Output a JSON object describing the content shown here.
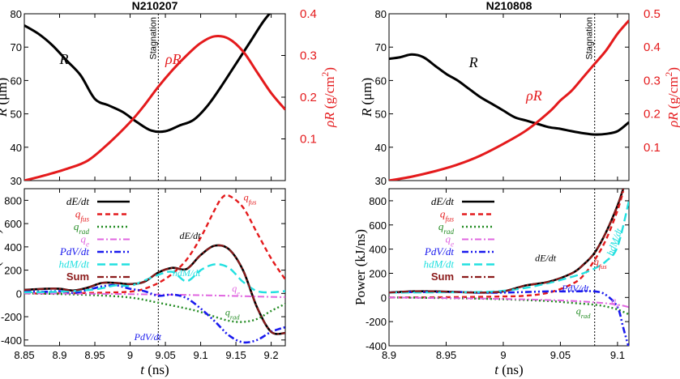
{
  "colors": {
    "R": "#000000",
    "rhoR": "#e41a1c",
    "dEdt": "#000000",
    "qfus": "#e41a1c",
    "qrad": "#228b22",
    "qe": "#e066e0",
    "PdVdt": "#1a1aee",
    "hdMdt": "#22e0e0",
    "Sum": "#8b1a1a"
  },
  "chart_data": [
    {
      "type": "line",
      "panel": "top-left",
      "title": "N210207",
      "ylabel": "R (μm)",
      "ylabel2": "ρR (g/cm²)",
      "xlim": [
        8.85,
        9.22
      ],
      "ylim": [
        30,
        80
      ],
      "y2lim": [
        0,
        0.4
      ],
      "yticks": [
        "30",
        "40",
        "50",
        "60",
        "70",
        "80"
      ],
      "y2ticks": [
        "0.1",
        "0.2",
        "0.3",
        "0.4"
      ],
      "stagnation": {
        "x": 9.04,
        "label": "Stagnation"
      },
      "series": [
        {
          "name": "R",
          "label": "R",
          "axis": "left",
          "x": [
            8.85,
            8.87,
            8.89,
            8.91,
            8.93,
            8.95,
            8.97,
            8.99,
            9.01,
            9.03,
            9.05,
            9.07,
            9.09,
            9.11,
            9.13,
            9.15,
            9.17,
            9.19,
            9.21
          ],
          "y": [
            76.5,
            74.0,
            70.5,
            66.0,
            61.5,
            54.5,
            52.5,
            50.5,
            47.5,
            45.0,
            44.8,
            46.5,
            48.2,
            52.5,
            58.5,
            65.0,
            71.5,
            78.0,
            83.0
          ]
        },
        {
          "name": "rhoR",
          "label": "ρR",
          "axis": "right",
          "x": [
            8.85,
            8.88,
            8.91,
            8.94,
            8.97,
            9.0,
            9.02,
            9.04,
            9.06,
            9.08,
            9.1,
            9.12,
            9.14,
            9.16,
            9.18,
            9.2,
            9.22
          ],
          "y": [
            0.0,
            0.013,
            0.028,
            0.048,
            0.09,
            0.14,
            0.18,
            0.225,
            0.265,
            0.3,
            0.33,
            0.346,
            0.34,
            0.31,
            0.26,
            0.21,
            0.17
          ]
        }
      ]
    },
    {
      "type": "line",
      "panel": "bottom-left",
      "xlabel": "t (ns)",
      "ylabel": "Power (kJ/ns)",
      "xlim": [
        8.85,
        9.22
      ],
      "ylim": [
        -450,
        900
      ],
      "xticks": [
        "8.85",
        "8.9",
        "8.95",
        "9",
        "9.05",
        "9.1",
        "9.15",
        "9.2"
      ],
      "yticks": [
        "-400",
        "-200",
        "0",
        "200",
        "400",
        "600",
        "800"
      ],
      "stagnation": {
        "x": 9.04
      },
      "legend_position": "top-left",
      "series": [
        {
          "name": "dEdt",
          "label": "dE/dt",
          "x": [
            8.85,
            8.88,
            8.9,
            8.92,
            8.94,
            8.96,
            8.98,
            9.0,
            9.02,
            9.04,
            9.06,
            9.08,
            9.1,
            9.12,
            9.14,
            9.16,
            9.18,
            9.2,
            9.22
          ],
          "y": [
            30,
            40,
            40,
            25,
            50,
            90,
            90,
            80,
            100,
            180,
            220,
            210,
            330,
            410,
            380,
            200,
            -120,
            -330,
            -340
          ]
        },
        {
          "name": "qfus",
          "label": "qfus",
          "x": [
            8.85,
            8.9,
            8.95,
            9.0,
            9.02,
            9.04,
            9.06,
            9.08,
            9.1,
            9.12,
            9.13,
            9.14,
            9.16,
            9.18,
            9.2,
            9.22
          ],
          "y": [
            0,
            0,
            5,
            15,
            40,
            90,
            170,
            290,
            480,
            720,
            820,
            840,
            740,
            520,
            300,
            120
          ]
        },
        {
          "name": "qrad",
          "label": "qrad",
          "x": [
            8.85,
            8.9,
            8.95,
            9.0,
            9.04,
            9.08,
            9.1,
            9.12,
            9.14,
            9.16,
            9.18,
            9.2,
            9.22
          ],
          "y": [
            0,
            -5,
            -15,
            -35,
            -80,
            -130,
            -160,
            -200,
            -235,
            -245,
            -220,
            -150,
            -90
          ]
        },
        {
          "name": "qe",
          "label": "qe",
          "x": [
            8.85,
            8.95,
            9.0,
            9.05,
            9.1,
            9.15,
            9.2,
            9.22
          ],
          "y": [
            0,
            -3,
            -6,
            -10,
            -15,
            -22,
            -30,
            -32
          ]
        },
        {
          "name": "PdVdt",
          "label": "PdV/dt",
          "x": [
            8.85,
            8.88,
            8.9,
            8.92,
            8.94,
            8.96,
            8.98,
            9.0,
            9.02,
            9.04,
            9.06,
            9.08,
            9.1,
            9.12,
            9.14,
            9.16,
            9.18,
            9.2,
            9.22
          ],
          "y": [
            20,
            15,
            20,
            5,
            30,
            60,
            70,
            40,
            20,
            -20,
            -10,
            -40,
            -130,
            -240,
            -360,
            -420,
            -400,
            -330,
            -290
          ]
        },
        {
          "name": "hdMdt",
          "label": "hdM/dt",
          "x": [
            8.85,
            8.9,
            8.95,
            8.98,
            9.0,
            9.02,
            9.04,
            9.06,
            9.08,
            9.1,
            9.12,
            9.14,
            9.16,
            9.18,
            9.2,
            9.22
          ],
          "y": [
            10,
            15,
            35,
            70,
            65,
            110,
            160,
            185,
            105,
            200,
            250,
            220,
            100,
            20,
            10,
            20
          ]
        },
        {
          "name": "Sum",
          "label": "Sum",
          "x": [
            8.85,
            8.88,
            8.9,
            8.92,
            8.94,
            8.96,
            8.98,
            9.0,
            9.02,
            9.04,
            9.06,
            9.08,
            9.1,
            9.12,
            9.14,
            9.16,
            9.18,
            9.2,
            9.22
          ],
          "y": [
            30,
            40,
            40,
            25,
            50,
            90,
            90,
            80,
            100,
            180,
            220,
            210,
            330,
            410,
            380,
            200,
            -120,
            -330,
            -340
          ]
        }
      ],
      "annotations": [
        {
          "text": "qfus",
          "x": 9.17,
          "y": 800
        },
        {
          "text": "dE/dt",
          "x": 9.085,
          "y": 470
        },
        {
          "text": "hdM/dt",
          "x": 9.08,
          "y": 150
        },
        {
          "text": "qe",
          "x": 9.15,
          "y": 15
        },
        {
          "text": "qrad",
          "x": 9.145,
          "y": -190
        },
        {
          "text": "PdV/dt",
          "x": 9.025,
          "y": -400
        }
      ]
    },
    {
      "type": "line",
      "panel": "top-right",
      "title": "N210808",
      "ylabel": "R (μm)",
      "ylabel2": "ρR (g/cm²)",
      "xlim": [
        8.9,
        9.11
      ],
      "ylim": [
        30,
        80
      ],
      "y2lim": [
        0,
        0.5
      ],
      "yticks": [
        "30",
        "40",
        "50",
        "60",
        "70",
        "80"
      ],
      "y2ticks": [
        "0.1",
        "0.2",
        "0.3",
        "0.4",
        "0.5"
      ],
      "stagnation": {
        "x": 9.08,
        "label": "Stagnation"
      },
      "series": [
        {
          "name": "R",
          "label": "R",
          "axis": "left",
          "x": [
            8.9,
            8.91,
            8.92,
            8.93,
            8.94,
            8.95,
            8.96,
            8.97,
            8.98,
            8.99,
            9.0,
            9.01,
            9.02,
            9.03,
            9.04,
            9.05,
            9.06,
            9.07,
            9.08,
            9.09,
            9.1,
            9.11
          ],
          "y": [
            66.5,
            67.0,
            67.8,
            67.0,
            64.5,
            62.0,
            60.0,
            57.5,
            55.0,
            53.0,
            51.0,
            49.0,
            48.0,
            47.0,
            46.0,
            45.5,
            44.8,
            44.2,
            43.8,
            44.0,
            44.8,
            47.5
          ]
        },
        {
          "name": "rhoR",
          "label": "ρR",
          "axis": "right",
          "x": [
            8.9,
            8.92,
            8.94,
            8.96,
            8.98,
            9.0,
            9.02,
            9.04,
            9.05,
            9.06,
            9.07,
            9.08,
            9.09,
            9.1,
            9.11
          ],
          "y": [
            0.0,
            0.012,
            0.028,
            0.048,
            0.075,
            0.11,
            0.15,
            0.205,
            0.24,
            0.27,
            0.31,
            0.35,
            0.39,
            0.44,
            0.48
          ]
        }
      ]
    },
    {
      "type": "line",
      "panel": "bottom-right",
      "xlabel": "t (ns)",
      "ylabel": "Power (kJ/ns)",
      "xlim": [
        8.9,
        9.11
      ],
      "ylim": [
        -400,
        900
      ],
      "xticks": [
        "8.9",
        "8.95",
        "9",
        "9.05",
        "9.1"
      ],
      "yticks": [
        "-400",
        "-200",
        "0",
        "200",
        "400",
        "600",
        "800"
      ],
      "stagnation": {
        "x": 9.08
      },
      "legend_position": "top-left",
      "series": [
        {
          "name": "dEdt",
          "label": "dE/dt",
          "x": [
            8.9,
            8.92,
            8.94,
            8.96,
            8.98,
            9.0,
            9.02,
            9.04,
            9.06,
            9.07,
            9.08,
            9.09,
            9.1,
            9.105
          ],
          "y": [
            40,
            50,
            50,
            45,
            40,
            50,
            100,
            130,
            200,
            270,
            370,
            540,
            760,
            900
          ]
        },
        {
          "name": "qfus",
          "label": "qfus",
          "x": [
            8.9,
            8.95,
            9.0,
            9.02,
            9.04,
            9.06,
            9.07,
            9.08,
            9.09,
            9.1,
            9.105
          ],
          "y": [
            0,
            2,
            8,
            15,
            40,
            110,
            180,
            310,
            480,
            720,
            880
          ]
        },
        {
          "name": "qrad",
          "label": "qrad",
          "x": [
            8.9,
            8.95,
            9.0,
            9.04,
            9.06,
            9.08,
            9.09,
            9.1,
            9.11
          ],
          "y": [
            0,
            -5,
            -15,
            -30,
            -45,
            -60,
            -75,
            -100,
            -140
          ]
        },
        {
          "name": "qe",
          "label": "qe",
          "x": [
            8.9,
            8.95,
            9.0,
            9.05,
            9.08,
            9.1,
            9.11
          ],
          "y": [
            0,
            -5,
            -12,
            -25,
            -40,
            -60,
            -80
          ]
        },
        {
          "name": "PdVdt",
          "label": "PdV/dt",
          "x": [
            8.9,
            8.92,
            8.94,
            8.96,
            8.98,
            9.0,
            9.02,
            9.04,
            9.06,
            9.08,
            9.09,
            9.1,
            9.105,
            9.11
          ],
          "y": [
            40,
            45,
            45,
            45,
            40,
            40,
            45,
            50,
            50,
            50,
            20,
            -80,
            -250,
            -420
          ]
        },
        {
          "name": "hdMdt",
          "label": "hdM/dt",
          "x": [
            8.9,
            8.94,
            8.98,
            9.0,
            9.02,
            9.04,
            9.06,
            9.07,
            9.08,
            9.09,
            9.1,
            9.11
          ],
          "y": [
            40,
            42,
            45,
            55,
            80,
            120,
            170,
            200,
            240,
            300,
            420,
            800
          ]
        },
        {
          "name": "Sum",
          "label": "Sum",
          "x": [
            8.9,
            8.92,
            8.94,
            8.96,
            8.98,
            9.0,
            9.02,
            9.04,
            9.06,
            9.07,
            9.08,
            9.09,
            9.1,
            9.105
          ],
          "y": [
            40,
            50,
            50,
            45,
            40,
            50,
            100,
            130,
            200,
            270,
            370,
            540,
            760,
            900
          ]
        }
      ],
      "annotations": [
        {
          "text": "dE/dt",
          "x": 9.037,
          "y": 300
        },
        {
          "text": "qfus",
          "x": 9.085,
          "y": 270
        },
        {
          "text": "hdM/dt",
          "x": 9.1,
          "y": 450
        },
        {
          "text": "PdV/dt",
          "x": 9.063,
          "y": 50
        },
        {
          "text": "qe",
          "x": 9.098,
          "y": -50
        },
        {
          "text": "qrad",
          "x": 9.07,
          "y": -140
        }
      ]
    }
  ]
}
